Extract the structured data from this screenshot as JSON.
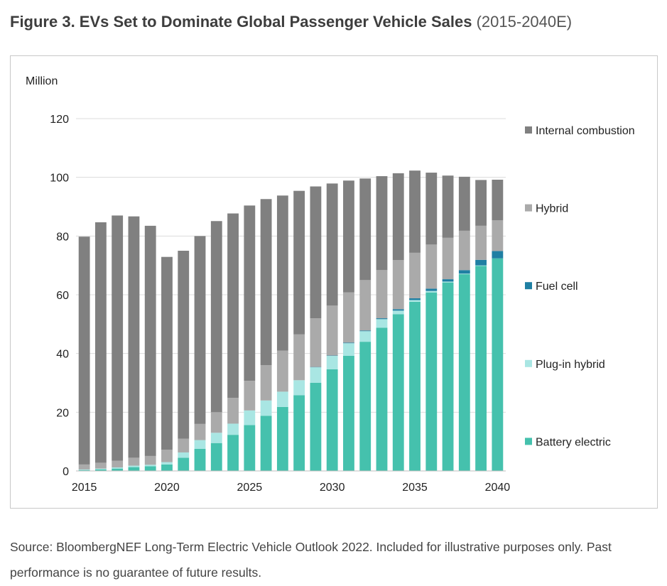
{
  "figure": {
    "title_bold": "Figure 3. EVs Set to Dominate Global Passenger Vehicle Sales",
    "title_light": "(2015-2040E)"
  },
  "source": "Source: BloombergNEF Long-Term Electric Vehicle Outlook 2022. Included for illustrative purposes only. Past performance is no guarantee of future results.",
  "chart_data": {
    "type": "bar",
    "stacked": true,
    "title": "EVs Set to Dominate Global Passenger Vehicle Sales",
    "ylabel": "Million",
    "xlabel": "",
    "ylim": [
      0,
      120
    ],
    "yticks": [
      0,
      20,
      40,
      60,
      80,
      100,
      120
    ],
    "xtick_labels": [
      "2015",
      "2020",
      "2025",
      "2030",
      "2035",
      "2040"
    ],
    "grid": true,
    "legend_position": "right",
    "categories": [
      "2015",
      "2016",
      "2017",
      "2018",
      "2019",
      "2020",
      "2021",
      "2022",
      "2023",
      "2024",
      "2025",
      "2026",
      "2027",
      "2028",
      "2029",
      "2030",
      "2031",
      "2032",
      "2033",
      "2034",
      "2035",
      "2036",
      "2037",
      "2038",
      "2039",
      "2040"
    ],
    "series": [
      {
        "name": "Battery electric",
        "color": "#45c1ad",
        "values": [
          0.3,
          0.5,
          0.8,
          1.3,
          1.6,
          2.2,
          4.5,
          7.5,
          9.5,
          12.3,
          15.6,
          18.8,
          21.8,
          25.8,
          30.0,
          34.6,
          39.2,
          44.0,
          48.8,
          53.4,
          57.6,
          60.8,
          64.2,
          67.0,
          69.8,
          72.4
        ]
      },
      {
        "name": "Plug-in hybrid",
        "color": "#a9e6e3",
        "values": [
          0.2,
          0.3,
          0.4,
          0.5,
          0.5,
          0.8,
          1.8,
          3.0,
          3.5,
          3.8,
          5.0,
          5.2,
          5.2,
          5.1,
          5.3,
          4.6,
          4.3,
          3.6,
          2.9,
          1.2,
          0.6,
          0.5,
          0.3,
          0.2,
          0.2,
          0.0
        ]
      },
      {
        "name": "Fuel cell",
        "color": "#1f7fa3",
        "values": [
          0,
          0,
          0,
          0,
          0,
          0,
          0,
          0,
          0,
          0,
          0,
          0,
          0,
          0,
          0.1,
          0.1,
          0.2,
          0.2,
          0.3,
          0.5,
          0.6,
          0.8,
          0.8,
          1.2,
          1.9,
          2.5
        ]
      },
      {
        "name": "Hybrid",
        "color": "#aaaaaa",
        "values": [
          1.7,
          2.0,
          2.3,
          2.7,
          3.0,
          4.2,
          4.7,
          5.5,
          7.0,
          8.8,
          10.1,
          12.0,
          14.0,
          15.6,
          16.6,
          17.0,
          17.1,
          17.2,
          16.4,
          16.7,
          15.5,
          15.0,
          14.1,
          13.4,
          11.6,
          10.5
        ]
      },
      {
        "name": "Internal combustion",
        "color": "#808080",
        "values": [
          77.6,
          81.9,
          83.5,
          82.2,
          78.4,
          65.7,
          64.0,
          64.0,
          65.1,
          62.8,
          59.7,
          56.6,
          52.8,
          48.9,
          44.9,
          41.6,
          38.1,
          34.6,
          32.0,
          29.6,
          28.0,
          24.5,
          21.2,
          18.4,
          15.6,
          13.8
        ]
      }
    ],
    "legend_order": [
      "Internal combustion",
      "Hybrid",
      "Fuel cell",
      "Plug-in hybrid",
      "Battery electric"
    ]
  }
}
